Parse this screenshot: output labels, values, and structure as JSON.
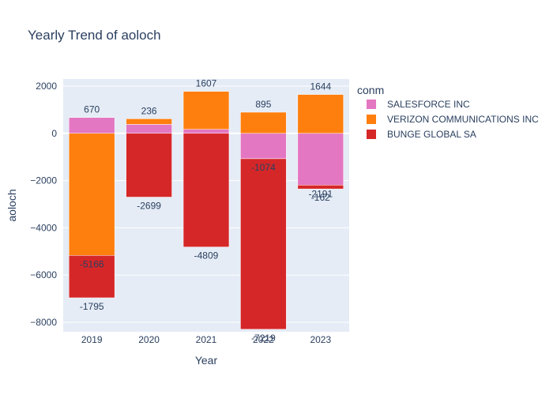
{
  "chart_data": {
    "type": "bar",
    "barmode": "relative",
    "title": "Yearly Trend of aoloch",
    "xlabel": "Year",
    "ylabel": "aoloch",
    "categories": [
      "2019",
      "2020",
      "2021",
      "2022",
      "2023"
    ],
    "ylim": [
      -8400,
      2300
    ],
    "yticks": [
      2000,
      0,
      -2000,
      -4000,
      -6000,
      -8000
    ],
    "ytick_labels": [
      "2000",
      "0",
      "−2000",
      "−4000",
      "−6000",
      "−8000"
    ],
    "legend_title": "conm",
    "legend_position": "right",
    "series": [
      {
        "name": "SALESFORCE INC",
        "color": "#e377c2",
        "values": [
          670,
          380,
          170,
          -1074,
          -2191
        ],
        "labels": [
          "670",
          "",
          "",
          "-1074",
          "-2191"
        ]
      },
      {
        "name": "VERIZON COMMUNICATIONS INC",
        "color": "#ff7f0e",
        "values": [
          -5166,
          236,
          1607,
          895,
          1644
        ],
        "labels": [
          "-5166",
          "236",
          "1607",
          "895",
          "1644"
        ]
      },
      {
        "name": "BUNGE GLOBAL SA",
        "color": "#d62728",
        "values": [
          -1795,
          -2699,
          -4809,
          -7219,
          -162
        ],
        "labels": [
          "-1795",
          "-2699",
          "-4809",
          "-7219",
          "-162"
        ]
      }
    ]
  }
}
